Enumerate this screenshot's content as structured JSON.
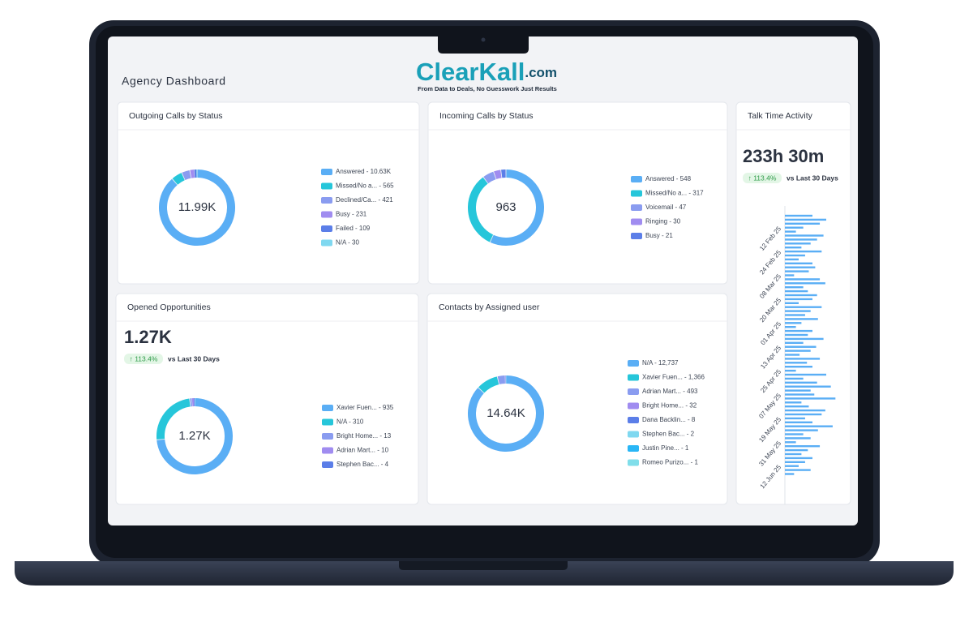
{
  "header": {
    "title": "Agency Dashboard",
    "logo": "ClearKall",
    "logo_suffix": ".com",
    "tagline": "From Data to Deals, No Guesswork Just Results"
  },
  "chart_data": [
    {
      "type": "pie",
      "title": "Outgoing Calls by Status",
      "center_label": "11.99K",
      "categories": [
        "Answered - 10.63K",
        "Missed/No a... - 565",
        "Declined/Ca... - 421",
        "Busy - 231",
        "Failed - 109",
        "N/A - 30"
      ],
      "values": [
        10630,
        565,
        421,
        231,
        109,
        30
      ],
      "colors": [
        "#5aaef5",
        "#26c6da",
        "#8a9cf0",
        "#a08cf0",
        "#5b7ee8",
        "#7fd8f0"
      ]
    },
    {
      "type": "pie",
      "title": "Incoming Calls by Status",
      "center_label": "963",
      "categories": [
        "Answered - 548",
        "Missed/No a... - 317",
        "Voicemail - 47",
        "Ringing - 30",
        "Busy - 21"
      ],
      "values": [
        548,
        317,
        47,
        30,
        21
      ],
      "colors": [
        "#5aaef5",
        "#26c6da",
        "#8a9cf0",
        "#a08cf0",
        "#5b7ee8"
      ]
    },
    {
      "type": "pie",
      "title": "Opened Opportunities",
      "kpi": "1.27K",
      "change": "↑ 113.4%",
      "change_note": "vs Last 30 Days",
      "center_label": "1.27K",
      "categories": [
        "Xavier Fuen... - 935",
        "N/A - 310",
        "Bright Home... - 13",
        "Adrian Mart... - 10",
        "Stephen Bac... - 4"
      ],
      "values": [
        935,
        310,
        13,
        10,
        4
      ],
      "colors": [
        "#5aaef5",
        "#26c6da",
        "#8a9cf0",
        "#a08cf0",
        "#5b7ee8"
      ]
    },
    {
      "type": "pie",
      "title": "Contacts by Assigned user",
      "center_label": "14.64K",
      "categories": [
        "N/A - 12,737",
        "Xavier Fuen... - 1,366",
        "Adrian Mart... - 493",
        "Bright Home... - 32",
        "Dana Backlin... - 8",
        "Stephen Bac... - 2",
        "Justin Pine... - 1",
        "Romeo Purizo... - 1"
      ],
      "values": [
        12737,
        1366,
        493,
        32,
        8,
        2,
        1,
        1
      ],
      "colors": [
        "#5aaef5",
        "#26c6da",
        "#8a9cf0",
        "#a08cf0",
        "#5b7ee8",
        "#7fd8f0",
        "#29b6f6",
        "#80deea"
      ]
    },
    {
      "type": "bar",
      "orientation": "horizontal",
      "title": "Talk Time Activity",
      "kpi": "233h 30m",
      "change": "↑ 113.4%",
      "change_note": "vs Last 30 Days",
      "color": "#5aaef5",
      "xlim": [
        0,
        60
      ],
      "categories": [
        null,
        null,
        null,
        "12 Feb 25",
        null,
        null,
        null,
        null,
        null,
        "24 Feb 25",
        null,
        null,
        null,
        null,
        null,
        "08 Mar 25",
        null,
        null,
        null,
        null,
        null,
        "20 Mar 25",
        null,
        null,
        null,
        null,
        null,
        "01 Apr 25",
        null,
        null,
        null,
        null,
        null,
        "13 Apr 25",
        null,
        null,
        null,
        null,
        null,
        "25 Apr 25",
        null,
        null,
        null,
        null,
        null,
        "07 May 25",
        null,
        null,
        null,
        null,
        null,
        "19 May 25",
        null,
        null,
        null,
        null,
        null,
        "31 May 25",
        null,
        null,
        null,
        null,
        null,
        "12 Jun 25",
        null,
        null
      ],
      "values": [
        30,
        45,
        38,
        20,
        12,
        42,
        35,
        28,
        18,
        40,
        22,
        15,
        30,
        33,
        26,
        10,
        38,
        44,
        20,
        25,
        35,
        30,
        15,
        40,
        28,
        22,
        36,
        18,
        12,
        30,
        25,
        42,
        20,
        34,
        28,
        16,
        38,
        24,
        30,
        12,
        45,
        20,
        35,
        50,
        28,
        32,
        55,
        18,
        26,
        44,
        40,
        22,
        30,
        52,
        36,
        20,
        28,
        12,
        38,
        25,
        18,
        30,
        22,
        15,
        28,
        10
      ]
    }
  ]
}
